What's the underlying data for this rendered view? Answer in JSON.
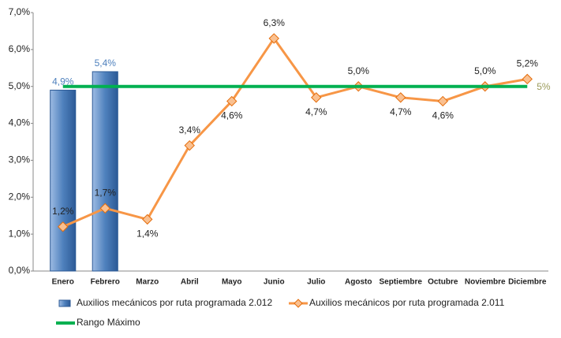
{
  "chart_data": {
    "type": "bar-line",
    "categories": [
      "Enero",
      "Febrero",
      "Marzo",
      "Abril",
      "Mayo",
      "Junio",
      "Julio",
      "Agosto",
      "Septiembre",
      "Octubre",
      "Noviembre",
      "Diciembre"
    ],
    "series": [
      {
        "name": "Auxilios mecánicos por ruta programada 2.012",
        "type": "bar",
        "color": "#4f81bd",
        "values": [
          4.9,
          5.4,
          null,
          null,
          null,
          null,
          null,
          null,
          null,
          null,
          null,
          null
        ],
        "value_labels": [
          "4,9%",
          "5,4%",
          null,
          null,
          null,
          null,
          null,
          null,
          null,
          null,
          null,
          null
        ]
      },
      {
        "name": "Auxilios mecánicos por ruta programada 2.011",
        "type": "line",
        "color": "#f79646",
        "values": [
          1.2,
          1.7,
          1.4,
          3.4,
          4.6,
          6.3,
          4.7,
          5.0,
          4.7,
          4.6,
          5.0,
          5.2
        ],
        "value_labels": [
          "1,2%",
          "1,7%",
          "1,4%",
          "3,4%",
          "4,6%",
          "6,3%",
          "4,7%",
          "5,0%",
          "4,7%",
          "4,6%",
          "5,0%",
          "5,2%"
        ]
      },
      {
        "name": "Rango Máximo",
        "type": "line",
        "color": "#00b050",
        "values": [
          5,
          5,
          5,
          5,
          5,
          5,
          5,
          5,
          5,
          5,
          5,
          5
        ],
        "value_labels": [
          null,
          null,
          null,
          null,
          null,
          null,
          null,
          null,
          null,
          null,
          null,
          "5%"
        ]
      }
    ],
    "ylim": [
      0,
      7
    ],
    "yticks": [
      {
        "value": 0,
        "label": "0,0%"
      },
      {
        "value": 1,
        "label": "1,0%"
      },
      {
        "value": 2,
        "label": "2,0%"
      },
      {
        "value": 3,
        "label": "3,0%"
      },
      {
        "value": 4,
        "label": "4,0%"
      },
      {
        "value": 5,
        "label": "5,0%"
      },
      {
        "value": 6,
        "label": "6,0%"
      },
      {
        "value": 7,
        "label": "7,0%"
      }
    ],
    "grid": false
  }
}
